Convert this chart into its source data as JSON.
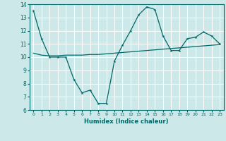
{
  "xlabel": "Humidex (Indice chaleur)",
  "ylabel": "",
  "xlim": [
    -0.5,
    23.5
  ],
  "ylim": [
    6,
    14
  ],
  "yticks": [
    6,
    7,
    8,
    9,
    10,
    11,
    12,
    13,
    14
  ],
  "xticks": [
    0,
    1,
    2,
    3,
    4,
    5,
    6,
    7,
    8,
    9,
    10,
    11,
    12,
    13,
    14,
    15,
    16,
    17,
    18,
    19,
    20,
    21,
    22,
    23
  ],
  "bg_color": "#cce8e8",
  "line_color": "#006868",
  "grid_color": "#ffffff",
  "line1_x": [
    0,
    1,
    2,
    3,
    4,
    5,
    6,
    7,
    8,
    9,
    10,
    11,
    12,
    13,
    14,
    15,
    16,
    17,
    18,
    19,
    20,
    21,
    22,
    23
  ],
  "line1_y": [
    13.5,
    11.4,
    10.0,
    10.0,
    10.0,
    8.3,
    7.3,
    7.5,
    6.5,
    6.5,
    9.7,
    10.9,
    12.0,
    13.2,
    13.8,
    13.6,
    11.6,
    10.5,
    10.5,
    11.4,
    11.5,
    11.9,
    11.6,
    11.0
  ],
  "line2_x": [
    0,
    1,
    2,
    3,
    4,
    5,
    6,
    7,
    8,
    9,
    10,
    11,
    12,
    13,
    14,
    15,
    16,
    17,
    18,
    19,
    20,
    21,
    22,
    23
  ],
  "line2_y": [
    10.3,
    10.15,
    10.1,
    10.1,
    10.15,
    10.15,
    10.15,
    10.2,
    10.2,
    10.25,
    10.3,
    10.35,
    10.4,
    10.45,
    10.5,
    10.55,
    10.6,
    10.65,
    10.7,
    10.75,
    10.8,
    10.85,
    10.9,
    10.95
  ]
}
